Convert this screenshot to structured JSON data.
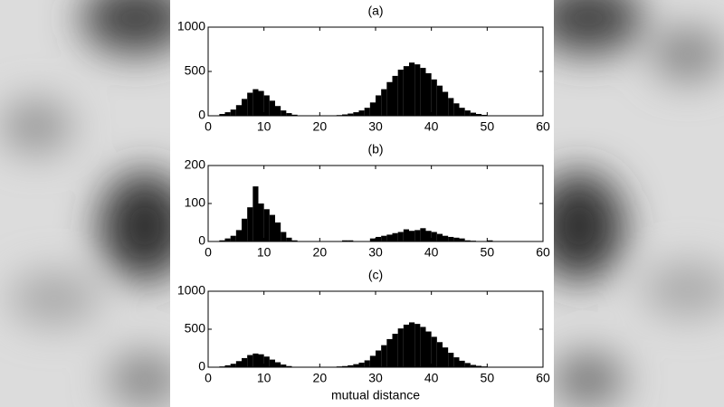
{
  "chart_data": [
    {
      "type": "histogram",
      "title": "(a)",
      "color": "#000000",
      "bins": [
        0,
        1,
        2,
        3,
        4,
        5,
        6,
        7,
        8,
        9,
        10,
        11,
        12,
        13,
        14,
        15,
        16,
        17,
        18,
        19,
        20,
        21,
        22,
        23,
        24,
        25,
        26,
        27,
        28,
        29,
        30,
        31,
        32,
        33,
        34,
        35,
        36,
        37,
        38,
        39,
        40,
        41,
        42,
        43,
        44,
        45,
        46,
        47,
        48,
        49,
        50,
        51,
        52,
        53,
        54,
        55,
        56,
        57,
        58,
        59,
        60
      ],
      "values": [
        0,
        5,
        20,
        40,
        70,
        120,
        190,
        260,
        300,
        280,
        230,
        170,
        110,
        60,
        30,
        12,
        5,
        2,
        0,
        0,
        0,
        2,
        5,
        8,
        15,
        25,
        40,
        60,
        90,
        150,
        230,
        300,
        380,
        450,
        520,
        560,
        600,
        580,
        540,
        480,
        410,
        340,
        270,
        200,
        140,
        90,
        60,
        35,
        20,
        10,
        5,
        2,
        0,
        0,
        0,
        0,
        0,
        0,
        0,
        0
      ],
      "xlim": [
        0,
        60
      ],
      "xticks": [
        0,
        10,
        20,
        30,
        40,
        50,
        60
      ],
      "ylim": [
        0,
        1000
      ],
      "yticks": [
        0,
        500,
        1000
      ]
    },
    {
      "type": "histogram",
      "title": "(b)",
      "color": "#000000",
      "bins": [
        0,
        1,
        2,
        3,
        4,
        5,
        6,
        7,
        8,
        9,
        10,
        11,
        12,
        13,
        14,
        15,
        16,
        17,
        18,
        19,
        20,
        21,
        22,
        23,
        24,
        25,
        26,
        27,
        28,
        29,
        30,
        31,
        32,
        33,
        34,
        35,
        36,
        37,
        38,
        39,
        40,
        41,
        42,
        43,
        44,
        45,
        46,
        47,
        48,
        49,
        50,
        51,
        52,
        53,
        54,
        55,
        56,
        57,
        58,
        59,
        60
      ],
      "values": [
        0,
        0,
        3,
        8,
        15,
        30,
        60,
        90,
        145,
        100,
        85,
        70,
        50,
        25,
        10,
        3,
        0,
        0,
        0,
        0,
        0,
        0,
        0,
        0,
        3,
        3,
        0,
        0,
        0,
        8,
        12,
        15,
        18,
        22,
        25,
        32,
        28,
        30,
        35,
        28,
        25,
        20,
        15,
        12,
        10,
        8,
        3,
        2,
        0,
        0,
        3,
        0,
        0,
        0,
        0,
        0,
        0,
        0,
        0,
        0
      ],
      "xlim": [
        0,
        60
      ],
      "xticks": [
        0,
        10,
        20,
        30,
        40,
        50,
        60
      ],
      "ylim": [
        0,
        200
      ],
      "yticks": [
        0,
        100,
        200
      ]
    },
    {
      "type": "histogram",
      "title": "(c)",
      "xlabel": "mutual distance",
      "color": "#000000",
      "bins": [
        0,
        1,
        2,
        3,
        4,
        5,
        6,
        7,
        8,
        9,
        10,
        11,
        12,
        13,
        14,
        15,
        16,
        17,
        18,
        19,
        20,
        21,
        22,
        23,
        24,
        25,
        26,
        27,
        28,
        29,
        30,
        31,
        32,
        33,
        34,
        35,
        36,
        37,
        38,
        39,
        40,
        41,
        42,
        43,
        44,
        45,
        46,
        47,
        48,
        49,
        50,
        51,
        52,
        53,
        54,
        55,
        56,
        57,
        58,
        59,
        60
      ],
      "values": [
        0,
        3,
        10,
        25,
        45,
        80,
        120,
        160,
        180,
        170,
        140,
        100,
        65,
        35,
        15,
        5,
        2,
        0,
        0,
        0,
        0,
        2,
        5,
        10,
        15,
        25,
        40,
        60,
        90,
        150,
        220,
        290,
        370,
        440,
        510,
        560,
        590,
        570,
        530,
        470,
        400,
        330,
        260,
        190,
        130,
        85,
        55,
        30,
        18,
        10,
        5,
        2,
        0,
        0,
        0,
        0,
        0,
        0,
        0,
        0
      ],
      "xlim": [
        0,
        60
      ],
      "xticks": [
        0,
        10,
        20,
        30,
        40,
        50,
        60
      ],
      "ylim": [
        0,
        1000
      ],
      "yticks": [
        0,
        500,
        1000
      ]
    }
  ]
}
